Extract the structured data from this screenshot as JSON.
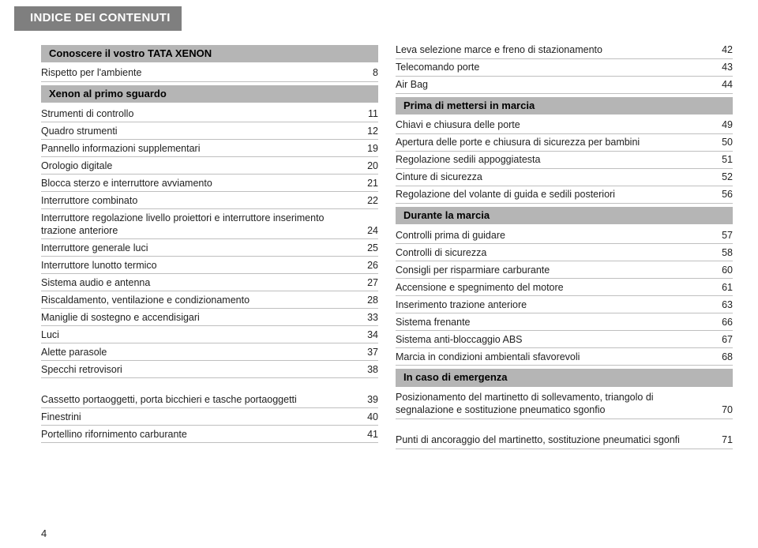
{
  "page": {
    "title": "INDICE DEI CONTENUTI",
    "number": "4"
  },
  "left": [
    {
      "type": "section",
      "text": "Conoscere il vostro TATA XENON"
    },
    {
      "type": "row",
      "label": "Rispetto per l'ambiente",
      "page": "8"
    },
    {
      "type": "section",
      "text": "Xenon al primo sguardo"
    },
    {
      "type": "row",
      "label": "Strumenti di controllo",
      "page": "11"
    },
    {
      "type": "row",
      "label": "Quadro strumenti",
      "page": "12"
    },
    {
      "type": "row",
      "label": "Pannello informazioni supplementari",
      "page": "19"
    },
    {
      "type": "row",
      "label": "Orologio digitale",
      "page": "20"
    },
    {
      "type": "row",
      "label": "Blocca sterzo e interruttore avviamento",
      "page": "21"
    },
    {
      "type": "row",
      "label": "Interruttore combinato",
      "page": "22"
    },
    {
      "type": "row",
      "label": "Interruttore regolazione livello proiettori e interruttore inserimento trazione anteriore",
      "page": "24",
      "tall": true
    },
    {
      "type": "row",
      "label": "Interruttore generale luci",
      "page": "25"
    },
    {
      "type": "row",
      "label": "Interruttore lunotto termico",
      "page": "26"
    },
    {
      "type": "row",
      "label": "Sistema audio e antenna",
      "page": "27"
    },
    {
      "type": "row",
      "label": "Riscaldamento, ventilazione e condizionamento",
      "page": "28"
    },
    {
      "type": "row",
      "label": "Maniglie di sostegno e accendisigari",
      "page": "33"
    },
    {
      "type": "row",
      "label": "Luci",
      "page": "34"
    },
    {
      "type": "row",
      "label": "Alette parasole",
      "page": "37"
    },
    {
      "type": "row",
      "label": "Specchi retrovisori",
      "page": "38"
    },
    {
      "type": "row",
      "label": "Cassetto portaoggetti, porta bicchieri e tasche portaoggetti",
      "page": "39",
      "tall": true
    },
    {
      "type": "row",
      "label": "Finestrini",
      "page": "40"
    },
    {
      "type": "row",
      "label": "Portellino rifornimento carburante",
      "page": "41"
    }
  ],
  "right": [
    {
      "type": "row",
      "label": "Leva selezione marce e freno di stazionamento",
      "page": "42"
    },
    {
      "type": "row",
      "label": "Telecomando porte",
      "page": "43"
    },
    {
      "type": "row",
      "label": "Air Bag",
      "page": "44"
    },
    {
      "type": "section",
      "text": "Prima di mettersi in marcia"
    },
    {
      "type": "row",
      "label": "Chiavi e chiusura delle porte",
      "page": "49"
    },
    {
      "type": "row",
      "label": "Apertura delle porte e chiusura di sicurezza per bambini",
      "page": "50"
    },
    {
      "type": "row",
      "label": "Regolazione sedili appoggiatesta",
      "page": "51"
    },
    {
      "type": "row",
      "label": "Cinture di sicurezza",
      "page": "52"
    },
    {
      "type": "row",
      "label": "Regolazione del volante di guida e sedili posteriori",
      "page": "56"
    },
    {
      "type": "section",
      "text": "Durante la marcia"
    },
    {
      "type": "row",
      "label": "Controlli prima di guidare",
      "page": "57"
    },
    {
      "type": "row",
      "label": "Controlli di sicurezza",
      "page": "58"
    },
    {
      "type": "row",
      "label": "Consigli per risparmiare carburante",
      "page": "60"
    },
    {
      "type": "row",
      "label": "Accensione e spegnimento del motore",
      "page": "61"
    },
    {
      "type": "row",
      "label": "Inserimento trazione anteriore",
      "page": "63"
    },
    {
      "type": "row",
      "label": "Sistema frenante",
      "page": "66"
    },
    {
      "type": "row",
      "label": "Sistema anti-bloccaggio ABS",
      "page": "67"
    },
    {
      "type": "row",
      "label": "Marcia in condizioni ambientali sfavorevoli",
      "page": "68"
    },
    {
      "type": "section",
      "text": "In caso di emergenza"
    },
    {
      "type": "row",
      "label": "Posizionamento del martinetto di sollevamento, triangolo di segnalazione e sostituzione pneumatico sgonfio",
      "page": "70",
      "tall": true
    },
    {
      "type": "row",
      "label": "Punti di ancoraggio del martinetto, sostituzione pneumatici sgonfi",
      "page": "71",
      "tall": true
    }
  ]
}
